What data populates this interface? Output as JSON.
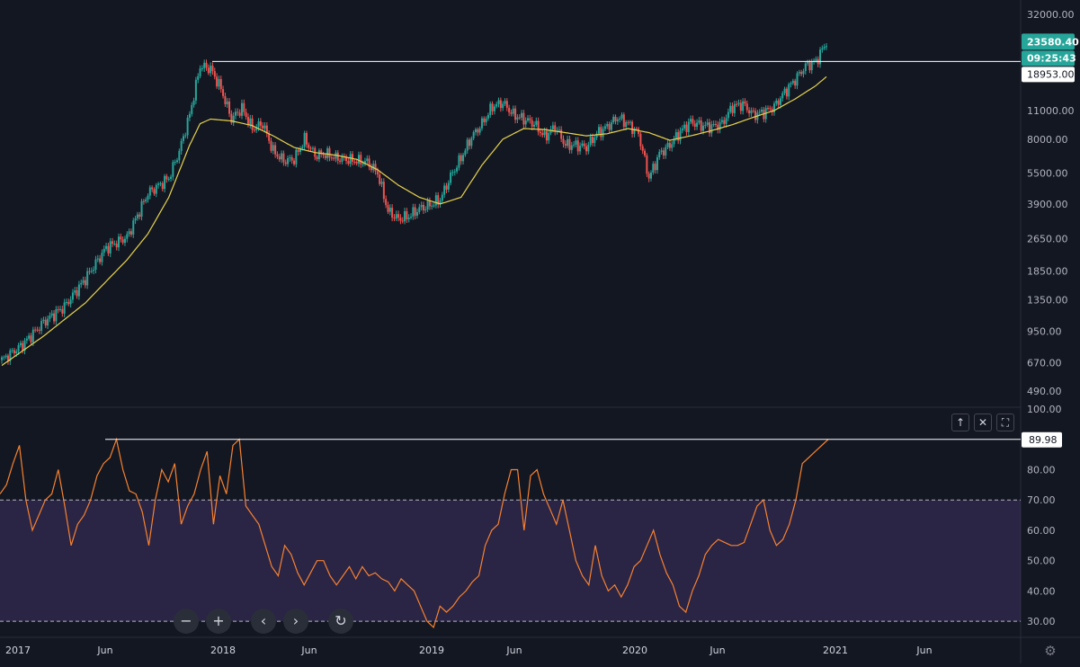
{
  "chart_data": [
    {
      "type": "candlestick",
      "scale": "log",
      "ylim": [
        430,
        36000
      ],
      "y_ticks": [
        "32000.00",
        "11000.00",
        "8000.00",
        "5500.00",
        "3900.00",
        "2650.00",
        "1850.00",
        "1350.00",
        "950.00",
        "670.00",
        "490.00"
      ],
      "y_tick_values": [
        32000,
        11000,
        8000,
        5500,
        3900,
        2650,
        1850,
        1350,
        950,
        670,
        490
      ],
      "last_price_label": "23580.40",
      "last_price": 23580.4,
      "countdown_label": "09:25:43",
      "hline_label": "18953.00",
      "hline_value": 18953,
      "colors": {
        "up": "#26a69a",
        "down": "#ef5350",
        "ma": "#e8d44d",
        "hline": "#ffffff",
        "bg": "#131722"
      },
      "price_anchors": [
        [
          0,
          690
        ],
        [
          10,
          820
        ],
        [
          20,
          1050
        ],
        [
          30,
          1250
        ],
        [
          40,
          1700
        ],
        [
          50,
          2400
        ],
        [
          60,
          2700
        ],
        [
          70,
          4400
        ],
        [
          80,
          5200
        ],
        [
          85,
          7000
        ],
        [
          90,
          10500
        ],
        [
          95,
          18000
        ],
        [
          100,
          17500
        ],
        [
          105,
          14000
        ],
        [
          110,
          10000
        ],
        [
          115,
          11300
        ],
        [
          120,
          9000
        ],
        [
          125,
          9500
        ],
        [
          130,
          7000
        ],
        [
          135,
          6300
        ],
        [
          140,
          6400
        ],
        [
          145,
          8000
        ],
        [
          150,
          6700
        ],
        [
          155,
          6800
        ],
        [
          160,
          6500
        ],
        [
          165,
          6400
        ],
        [
          170,
          6300
        ],
        [
          175,
          6200
        ],
        [
          180,
          5500
        ],
        [
          185,
          3600
        ],
        [
          190,
          3300
        ],
        [
          195,
          3400
        ],
        [
          200,
          3700
        ],
        [
          205,
          3850
        ],
        [
          210,
          4100
        ],
        [
          215,
          5300
        ],
        [
          220,
          6500
        ],
        [
          225,
          8200
        ],
        [
          230,
          9500
        ],
        [
          235,
          11500
        ],
        [
          240,
          12000
        ],
        [
          245,
          10500
        ],
        [
          250,
          10000
        ],
        [
          255,
          9500
        ],
        [
          260,
          8200
        ],
        [
          265,
          9200
        ],
        [
          270,
          7500
        ],
        [
          275,
          7500
        ],
        [
          280,
          7300
        ],
        [
          285,
          8500
        ],
        [
          290,
          9200
        ],
        [
          295,
          10200
        ],
        [
          300,
          9500
        ],
        [
          305,
          8500
        ],
        [
          310,
          5200
        ],
        [
          315,
          6800
        ],
        [
          320,
          7500
        ],
        [
          325,
          8700
        ],
        [
          330,
          9700
        ],
        [
          335,
          9300
        ],
        [
          340,
          9200
        ],
        [
          345,
          9500
        ],
        [
          350,
          11500
        ],
        [
          355,
          11800
        ],
        [
          360,
          10500
        ],
        [
          365,
          10800
        ],
        [
          370,
          11500
        ],
        [
          375,
          13500
        ],
        [
          380,
          15500
        ],
        [
          385,
          18000
        ],
        [
          390,
          19000
        ],
        [
          395,
          23500
        ]
      ],
      "ma_anchors": [
        [
          0,
          650
        ],
        [
          20,
          900
        ],
        [
          40,
          1300
        ],
        [
          60,
          2100
        ],
        [
          70,
          2800
        ],
        [
          80,
          4200
        ],
        [
          90,
          7500
        ],
        [
          95,
          9500
        ],
        [
          100,
          10000
        ],
        [
          110,
          9800
        ],
        [
          120,
          9300
        ],
        [
          130,
          8300
        ],
        [
          140,
          7300
        ],
        [
          150,
          6900
        ],
        [
          160,
          6700
        ],
        [
          170,
          6400
        ],
        [
          180,
          5700
        ],
        [
          190,
          4800
        ],
        [
          200,
          4200
        ],
        [
          210,
          3900
        ],
        [
          220,
          4200
        ],
        [
          230,
          6000
        ],
        [
          240,
          8000
        ],
        [
          250,
          9000
        ],
        [
          260,
          8900
        ],
        [
          270,
          8600
        ],
        [
          280,
          8300
        ],
        [
          290,
          8500
        ],
        [
          300,
          9000
        ],
        [
          310,
          8600
        ],
        [
          320,
          7900
        ],
        [
          330,
          8300
        ],
        [
          340,
          8800
        ],
        [
          350,
          9400
        ],
        [
          360,
          10200
        ],
        [
          370,
          11000
        ],
        [
          380,
          12500
        ],
        [
          390,
          14500
        ],
        [
          395,
          16000
        ]
      ]
    },
    {
      "type": "line",
      "ylim": [
        25,
        100
      ],
      "y_ticks": [
        "100.00",
        "80.00",
        "70.00",
        "60.00",
        "50.00",
        "40.00",
        "30.00"
      ],
      "y_tick_values": [
        100,
        80,
        70,
        60,
        50,
        40,
        30
      ],
      "bands": [
        30,
        70
      ],
      "hline_label": "89.98",
      "hline_value": 89.98,
      "colors": {
        "line": "#f7822f",
        "band": "rgba(126,87,194,0.22)",
        "dash": "#b2b5be"
      },
      "values": [
        72,
        75,
        82,
        88,
        70,
        60,
        65,
        70,
        72,
        80,
        68,
        55,
        62,
        65,
        70,
        78,
        82,
        84,
        90,
        80,
        73,
        72,
        66,
        55,
        70,
        80,
        76,
        82,
        62,
        68,
        72,
        80,
        86,
        62,
        78,
        72,
        88,
        90,
        68,
        65,
        62,
        55,
        48,
        45,
        55,
        52,
        46,
        42,
        46,
        50,
        50,
        45,
        42,
        45,
        48,
        44,
        48,
        45,
        46,
        44,
        43,
        40,
        44,
        42,
        40,
        35,
        30,
        28,
        35,
        33,
        35,
        38,
        40,
        43,
        45,
        55,
        60,
        62,
        72,
        80,
        80,
        60,
        78,
        80,
        72,
        67,
        62,
        70,
        60,
        50,
        45,
        42,
        55,
        45,
        40,
        42,
        38,
        42,
        48,
        50,
        55,
        60,
        52,
        46,
        42,
        35,
        33,
        40,
        45,
        52,
        55,
        57,
        56,
        55,
        55,
        56,
        62,
        68,
        70,
        60,
        55,
        57,
        62,
        70,
        82,
        84,
        86,
        88,
        89.98
      ]
    }
  ],
  "x_axis": {
    "labels": [
      "2017",
      "Jun",
      "2018",
      "Jun",
      "2019",
      "Jun",
      "2020",
      "Jun",
      "2021",
      "Jun"
    ]
  },
  "pane_buttons": [
    {
      "name": "move-pane-up-button",
      "glyph": "↑"
    },
    {
      "name": "close-pane-button",
      "glyph": "✕"
    },
    {
      "name": "maximize-pane-button",
      "glyph": "⛶"
    }
  ],
  "nav_buttons": [
    {
      "name": "zoom-out-button",
      "glyph": "−"
    },
    {
      "name": "zoom-in-button",
      "glyph": "+"
    },
    {
      "name": "scroll-left-button",
      "glyph": "‹"
    },
    {
      "name": "scroll-right-button",
      "glyph": "›"
    },
    {
      "name": "reset-chart-button",
      "glyph": "↻"
    }
  ],
  "settings_icon": "gear-icon"
}
